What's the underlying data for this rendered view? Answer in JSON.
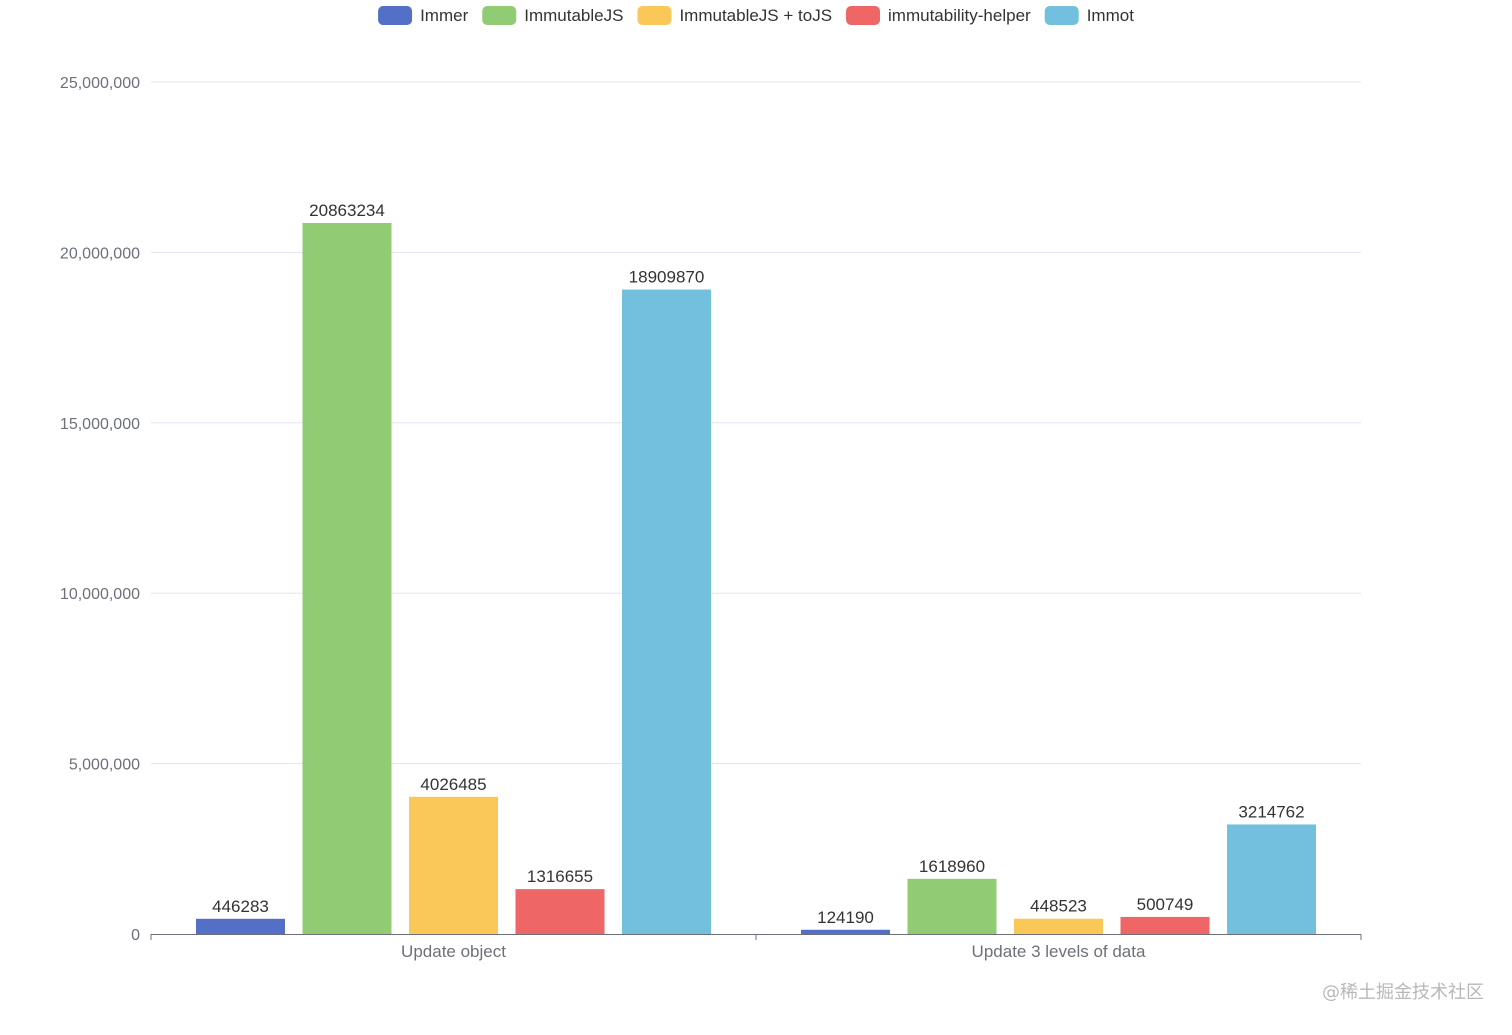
{
  "chart_data": {
    "type": "bar",
    "title": "",
    "xlabel": "",
    "ylabel": "",
    "ylim": [
      0,
      25000000
    ],
    "yticks": [
      0,
      5000000,
      10000000,
      15000000,
      20000000,
      25000000
    ],
    "ytick_labels": [
      "0",
      "5,000,000",
      "10,000,000",
      "15,000,000",
      "20,000,000",
      "25,000,000"
    ],
    "grid": true,
    "legend_position": "top",
    "categories": [
      "Update object",
      "Update 3 levels of data"
    ],
    "series": [
      {
        "name": "Immer",
        "values": [
          446283,
          124190
        ],
        "color": "#5470c6"
      },
      {
        "name": "ImmutableJS",
        "values": [
          20863234,
          1618960
        ],
        "color": "#91cc75"
      },
      {
        "name": "ImmutableJS + toJS",
        "values": [
          4026485,
          448523
        ],
        "color": "#fac858"
      },
      {
        "name": "immutability-helper",
        "values": [
          1316655,
          500749
        ],
        "color": "#ee6666"
      },
      {
        "name": "Immot",
        "values": [
          18909870,
          3214762
        ],
        "color": "#73c0de"
      }
    ]
  },
  "watermark": "@稀土掘金技术社区"
}
